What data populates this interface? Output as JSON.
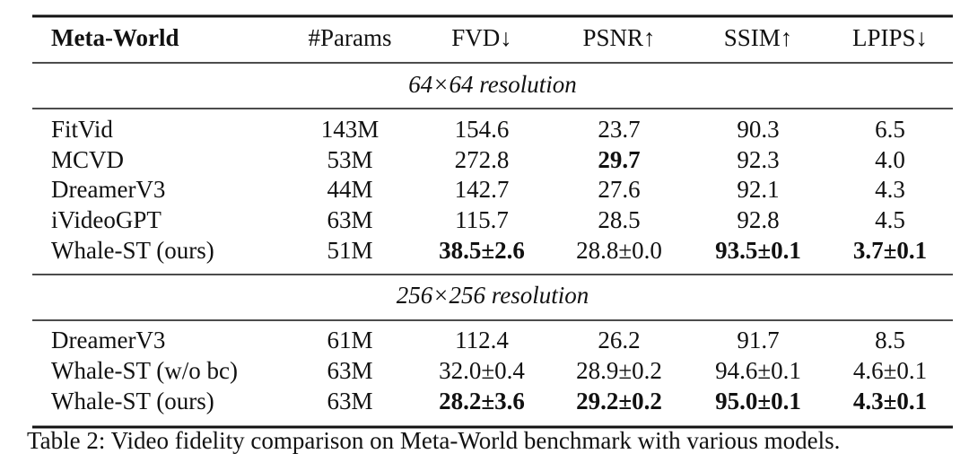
{
  "table": {
    "header": [
      {
        "text": "Meta-World",
        "bold": true
      },
      "#Params",
      "FVD↓",
      "PSNR↑",
      "SSIM↑",
      "LPIPS↓"
    ],
    "sections": [
      {
        "title": "64×64 resolution",
        "rows": [
          [
            "FitVid",
            "143M",
            "154.6",
            "23.7",
            "90.3",
            "6.5"
          ],
          [
            "MCVD",
            "53M",
            "272.8",
            {
              "text": "29.7",
              "bold": true
            },
            "92.3",
            "4.0"
          ],
          [
            "DreamerV3",
            "44M",
            "142.7",
            "27.6",
            "92.1",
            "4.3"
          ],
          [
            "iVideoGPT",
            "63M",
            "115.7",
            "28.5",
            "92.8",
            "4.5"
          ],
          [
            "Whale-ST (ours)",
            "51M",
            {
              "text": "38.5±2.6",
              "bold": true
            },
            "28.8±0.0",
            {
              "text": "93.5±0.1",
              "bold": true
            },
            {
              "text": "3.7±0.1",
              "bold": true
            }
          ]
        ]
      },
      {
        "title": "256×256 resolution",
        "rows": [
          [
            "DreamerV3",
            "61M",
            "112.4",
            "26.2",
            "91.7",
            "8.5"
          ],
          [
            "Whale-ST (w/o bc)",
            "63M",
            "32.0±0.4",
            "28.9±0.2",
            "94.6±0.1",
            "4.6±0.1"
          ],
          [
            "Whale-ST (ours)",
            "63M",
            {
              "text": "28.2±3.6",
              "bold": true
            },
            {
              "text": "29.2±0.2",
              "bold": true
            },
            {
              "text": "95.0±0.1",
              "bold": true
            },
            {
              "text": "4.3±0.1",
              "bold": true
            }
          ]
        ]
      }
    ]
  },
  "caption": "Table 2: Video fidelity comparison on Meta-World benchmark with various models."
}
